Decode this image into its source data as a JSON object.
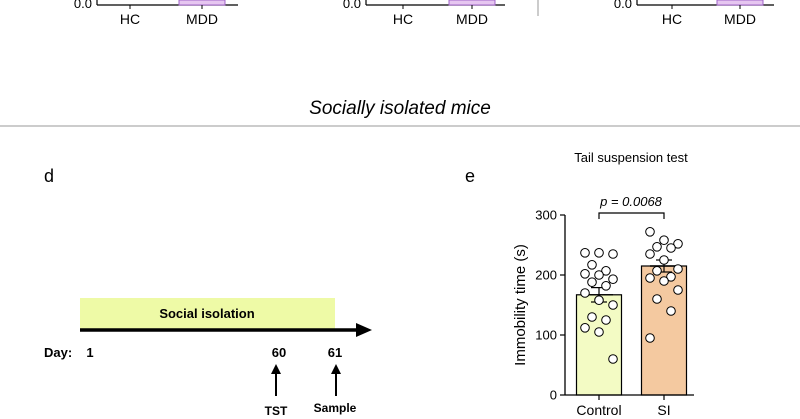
{
  "top_charts": [
    {
      "categories": [
        "HC",
        "MDD"
      ],
      "ytick_bottom": "0.0"
    },
    {
      "categories": [
        "HC",
        "MDD"
      ],
      "ytick_bottom": "0.0"
    },
    {
      "categories": [
        "HC",
        "MDD"
      ],
      "ytick_bottom": "0.0"
    }
  ],
  "section_title": "Socially isolated mice",
  "panels": {
    "d": "d",
    "e": "e"
  },
  "timeline": {
    "bar_label": "Social isolation",
    "day_prefix": "Day:",
    "days": [
      "1",
      "60",
      "61"
    ],
    "events": [
      "TST",
      "Sample"
    ]
  },
  "chart_data": {
    "type": "bar",
    "title": "Tail suspension test",
    "xlabel": "",
    "ylabel": "Immobility time (s)",
    "ylim": [
      0,
      300
    ],
    "yticks": [
      0,
      100,
      200,
      300
    ],
    "categories": [
      "Control",
      "SI"
    ],
    "values": [
      167,
      215
    ],
    "sem": [
      12,
      10
    ],
    "bar_colors": [
      "#f3fbc4",
      "#f4c9a0"
    ],
    "points": [
      [
        237,
        237,
        235,
        217,
        207,
        202,
        200,
        193,
        188,
        182,
        170,
        158,
        150,
        130,
        125,
        112,
        105,
        60
      ],
      [
        272,
        258,
        252,
        247,
        245,
        235,
        225,
        210,
        207,
        197,
        195,
        190,
        175,
        160,
        140,
        95
      ]
    ],
    "annotation": "p = 0.0068"
  }
}
